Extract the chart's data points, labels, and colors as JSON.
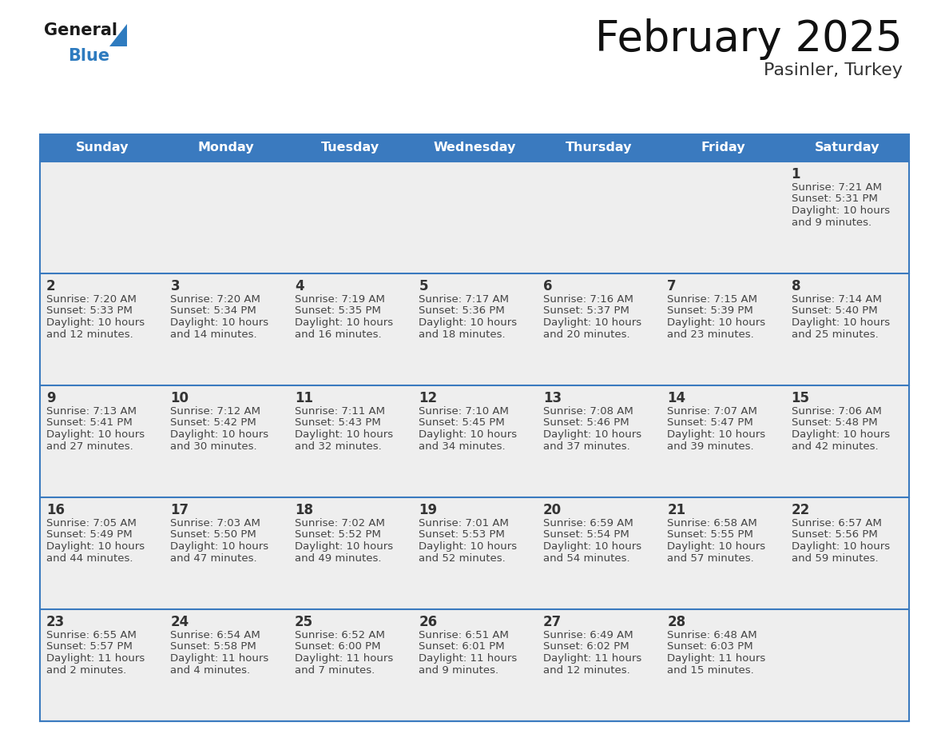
{
  "title": "February 2025",
  "subtitle": "Pasinler, Turkey",
  "header_color": "#3a7abf",
  "header_text_color": "#ffffff",
  "day_names": [
    "Sunday",
    "Monday",
    "Tuesday",
    "Wednesday",
    "Thursday",
    "Friday",
    "Saturday"
  ],
  "bg_color": "#ffffff",
  "cell_bg_color": "#eeeeee",
  "separator_color": "#3a7abf",
  "day_num_color": "#333333",
  "info_color": "#444444",
  "logo_general_color": "#1a1a1a",
  "logo_blue_color": "#2e7bbf",
  "days": [
    {
      "date": 1,
      "row": 0,
      "col": 6,
      "sunrise": "7:21 AM",
      "sunset": "5:31 PM",
      "daylight_hours": 10,
      "daylight_minutes": 9
    },
    {
      "date": 2,
      "row": 1,
      "col": 0,
      "sunrise": "7:20 AM",
      "sunset": "5:33 PM",
      "daylight_hours": 10,
      "daylight_minutes": 12
    },
    {
      "date": 3,
      "row": 1,
      "col": 1,
      "sunrise": "7:20 AM",
      "sunset": "5:34 PM",
      "daylight_hours": 10,
      "daylight_minutes": 14
    },
    {
      "date": 4,
      "row": 1,
      "col": 2,
      "sunrise": "7:19 AM",
      "sunset": "5:35 PM",
      "daylight_hours": 10,
      "daylight_minutes": 16
    },
    {
      "date": 5,
      "row": 1,
      "col": 3,
      "sunrise": "7:17 AM",
      "sunset": "5:36 PM",
      "daylight_hours": 10,
      "daylight_minutes": 18
    },
    {
      "date": 6,
      "row": 1,
      "col": 4,
      "sunrise": "7:16 AM",
      "sunset": "5:37 PM",
      "daylight_hours": 10,
      "daylight_minutes": 20
    },
    {
      "date": 7,
      "row": 1,
      "col": 5,
      "sunrise": "7:15 AM",
      "sunset": "5:39 PM",
      "daylight_hours": 10,
      "daylight_minutes": 23
    },
    {
      "date": 8,
      "row": 1,
      "col": 6,
      "sunrise": "7:14 AM",
      "sunset": "5:40 PM",
      "daylight_hours": 10,
      "daylight_minutes": 25
    },
    {
      "date": 9,
      "row": 2,
      "col": 0,
      "sunrise": "7:13 AM",
      "sunset": "5:41 PM",
      "daylight_hours": 10,
      "daylight_minutes": 27
    },
    {
      "date": 10,
      "row": 2,
      "col": 1,
      "sunrise": "7:12 AM",
      "sunset": "5:42 PM",
      "daylight_hours": 10,
      "daylight_minutes": 30
    },
    {
      "date": 11,
      "row": 2,
      "col": 2,
      "sunrise": "7:11 AM",
      "sunset": "5:43 PM",
      "daylight_hours": 10,
      "daylight_minutes": 32
    },
    {
      "date": 12,
      "row": 2,
      "col": 3,
      "sunrise": "7:10 AM",
      "sunset": "5:45 PM",
      "daylight_hours": 10,
      "daylight_minutes": 34
    },
    {
      "date": 13,
      "row": 2,
      "col": 4,
      "sunrise": "7:08 AM",
      "sunset": "5:46 PM",
      "daylight_hours": 10,
      "daylight_minutes": 37
    },
    {
      "date": 14,
      "row": 2,
      "col": 5,
      "sunrise": "7:07 AM",
      "sunset": "5:47 PM",
      "daylight_hours": 10,
      "daylight_minutes": 39
    },
    {
      "date": 15,
      "row": 2,
      "col": 6,
      "sunrise": "7:06 AM",
      "sunset": "5:48 PM",
      "daylight_hours": 10,
      "daylight_minutes": 42
    },
    {
      "date": 16,
      "row": 3,
      "col": 0,
      "sunrise": "7:05 AM",
      "sunset": "5:49 PM",
      "daylight_hours": 10,
      "daylight_minutes": 44
    },
    {
      "date": 17,
      "row": 3,
      "col": 1,
      "sunrise": "7:03 AM",
      "sunset": "5:50 PM",
      "daylight_hours": 10,
      "daylight_minutes": 47
    },
    {
      "date": 18,
      "row": 3,
      "col": 2,
      "sunrise": "7:02 AM",
      "sunset": "5:52 PM",
      "daylight_hours": 10,
      "daylight_minutes": 49
    },
    {
      "date": 19,
      "row": 3,
      "col": 3,
      "sunrise": "7:01 AM",
      "sunset": "5:53 PM",
      "daylight_hours": 10,
      "daylight_minutes": 52
    },
    {
      "date": 20,
      "row": 3,
      "col": 4,
      "sunrise": "6:59 AM",
      "sunset": "5:54 PM",
      "daylight_hours": 10,
      "daylight_minutes": 54
    },
    {
      "date": 21,
      "row": 3,
      "col": 5,
      "sunrise": "6:58 AM",
      "sunset": "5:55 PM",
      "daylight_hours": 10,
      "daylight_minutes": 57
    },
    {
      "date": 22,
      "row": 3,
      "col": 6,
      "sunrise": "6:57 AM",
      "sunset": "5:56 PM",
      "daylight_hours": 10,
      "daylight_minutes": 59
    },
    {
      "date": 23,
      "row": 4,
      "col": 0,
      "sunrise": "6:55 AM",
      "sunset": "5:57 PM",
      "daylight_hours": 11,
      "daylight_minutes": 2
    },
    {
      "date": 24,
      "row": 4,
      "col": 1,
      "sunrise": "6:54 AM",
      "sunset": "5:58 PM",
      "daylight_hours": 11,
      "daylight_minutes": 4
    },
    {
      "date": 25,
      "row": 4,
      "col": 2,
      "sunrise": "6:52 AM",
      "sunset": "6:00 PM",
      "daylight_hours": 11,
      "daylight_minutes": 7
    },
    {
      "date": 26,
      "row": 4,
      "col": 3,
      "sunrise": "6:51 AM",
      "sunset": "6:01 PM",
      "daylight_hours": 11,
      "daylight_minutes": 9
    },
    {
      "date": 27,
      "row": 4,
      "col": 4,
      "sunrise": "6:49 AM",
      "sunset": "6:02 PM",
      "daylight_hours": 11,
      "daylight_minutes": 12
    },
    {
      "date": 28,
      "row": 4,
      "col": 5,
      "sunrise": "6:48 AM",
      "sunset": "6:03 PM",
      "daylight_hours": 11,
      "daylight_minutes": 15
    }
  ],
  "fig_width": 11.88,
  "fig_height": 9.18,
  "dpi": 100
}
